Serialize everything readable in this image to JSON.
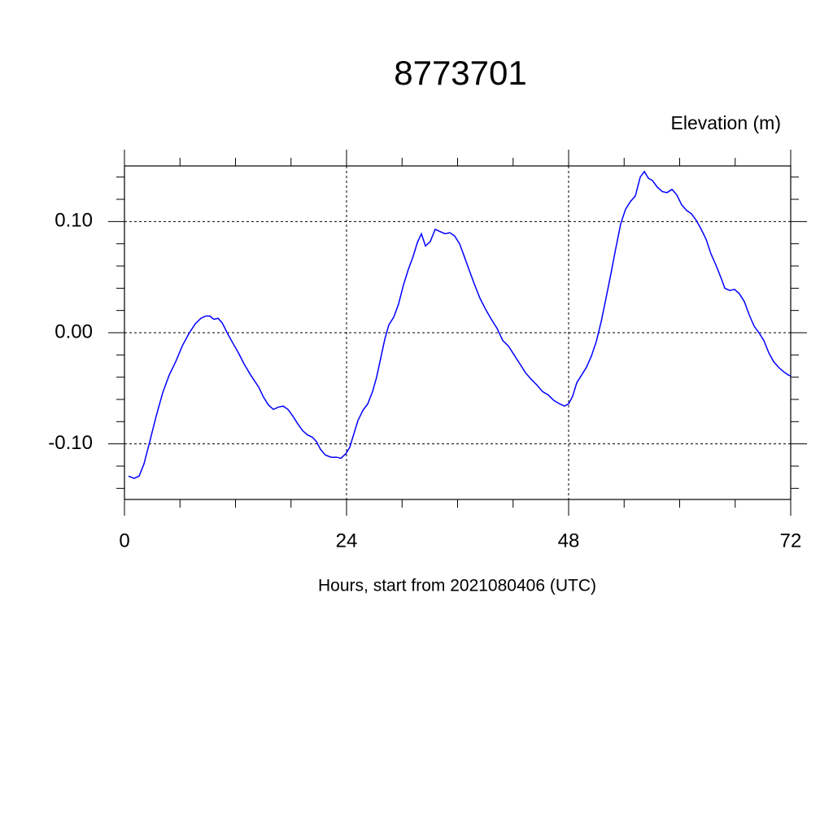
{
  "chart_data": {
    "type": "line",
    "title": "8773701",
    "y_label": "Elevation (m)",
    "x_label": "Hours, start from 2021080406 (UTC)",
    "xlim": [
      0,
      72
    ],
    "ylim": [
      -0.15,
      0.15
    ],
    "xticks": [
      0,
      24,
      48,
      72
    ],
    "yticks": [
      {
        "value": -0.1,
        "label": "-0.10"
      },
      {
        "value": 0,
        "label": "0.00"
      },
      {
        "value": 0.1,
        "label": "0.10"
      }
    ],
    "minor_xticks": [
      6,
      12,
      18,
      30,
      36,
      42,
      54,
      60,
      66
    ],
    "minor_yticks": [
      -0.14,
      -0.12,
      -0.08,
      -0.06,
      -0.04,
      -0.02,
      0.02,
      0.04,
      0.06,
      0.08,
      0.12,
      0.14
    ],
    "grid": true,
    "series": [
      {
        "color": "#0000ff",
        "x": [
          0.44,
          1.05,
          1.58,
          2.11,
          2.73,
          3.43,
          4.13,
          4.84,
          5.54,
          6.24,
          6.95,
          7.65,
          8.26,
          8.79,
          9.23,
          9.67,
          10.11,
          10.55,
          11.16,
          11.69,
          12.31,
          12.92,
          13.63,
          14.51,
          15.03,
          15.56,
          16.09,
          16.62,
          17.14,
          17.67,
          18.2,
          18.73,
          19.25,
          19.78,
          20.31,
          20.75,
          21.19,
          21.71,
          22.33,
          22.95,
          23.38,
          23.91,
          24.35,
          24.79,
          25.23,
          25.76,
          26.29,
          26.81,
          27.25,
          27.69,
          28.13,
          28.57,
          29.1,
          29.63,
          30.15,
          30.68,
          31.21,
          31.65,
          32.09,
          32.53,
          33.05,
          33.58,
          34.11,
          34.64,
          35.16,
          35.69,
          36.22,
          36.75,
          37.27,
          37.8,
          38.42,
          39.03,
          39.65,
          40.26,
          40.88,
          41.49,
          42.11,
          42.73,
          43.34,
          43.96,
          44.57,
          45.19,
          45.8,
          46.42,
          47.03,
          47.56,
          48.0,
          48.44,
          48.88,
          49.41,
          49.93,
          50.46,
          50.99,
          51.52,
          52.04,
          52.57,
          53.1,
          53.63,
          54.15,
          54.68,
          55.21,
          55.74,
          56.18,
          56.62,
          57.05,
          57.58,
          58.11,
          58.64,
          59.17,
          59.69,
          60.22,
          60.75,
          61.27,
          61.8,
          62.33,
          62.86,
          63.38,
          63.91,
          64.44,
          64.88,
          65.41,
          65.93,
          66.46,
          66.99,
          67.52,
          68.04,
          68.57,
          69.1,
          69.63,
          70.15,
          70.68,
          71.21,
          71.74,
          72.0
        ],
        "values": [
          -0.129,
          -0.131,
          -0.129,
          -0.118,
          -0.098,
          -0.075,
          -0.054,
          -0.038,
          -0.026,
          -0.012,
          -0.001,
          0.008,
          0.013,
          0.015,
          0.015,
          0.012,
          0.013,
          0.009,
          -0.001,
          -0.009,
          -0.018,
          -0.028,
          -0.038,
          -0.049,
          -0.058,
          -0.065,
          -0.069,
          -0.067,
          -0.066,
          -0.069,
          -0.075,
          -0.082,
          -0.088,
          -0.092,
          -0.094,
          -0.098,
          -0.105,
          -0.11,
          -0.112,
          -0.112,
          -0.113,
          -0.109,
          -0.103,
          -0.091,
          -0.079,
          -0.07,
          -0.064,
          -0.053,
          -0.04,
          -0.023,
          -0.006,
          0.007,
          0.014,
          0.026,
          0.043,
          0.057,
          0.069,
          0.081,
          0.089,
          0.078,
          0.082,
          0.093,
          0.091,
          0.089,
          0.09,
          0.087,
          0.08,
          0.068,
          0.056,
          0.044,
          0.031,
          0.021,
          0.012,
          0.004,
          -0.007,
          -0.012,
          -0.02,
          -0.028,
          -0.036,
          -0.042,
          -0.047,
          -0.053,
          -0.056,
          -0.061,
          -0.064,
          -0.066,
          -0.064,
          -0.057,
          -0.045,
          -0.038,
          -0.031,
          -0.021,
          -0.008,
          0.01,
          0.031,
          0.053,
          0.076,
          0.098,
          0.111,
          0.118,
          0.123,
          0.14,
          0.145,
          0.139,
          0.137,
          0.131,
          0.127,
          0.126,
          0.129,
          0.124,
          0.115,
          0.11,
          0.107,
          0.101,
          0.093,
          0.084,
          0.071,
          0.061,
          0.05,
          0.04,
          0.038,
          0.039,
          0.035,
          0.028,
          0.016,
          0.006,
          0.0,
          -0.007,
          -0.018,
          -0.026,
          -0.031,
          -0.035,
          -0.038,
          -0.039
        ]
      }
    ]
  }
}
